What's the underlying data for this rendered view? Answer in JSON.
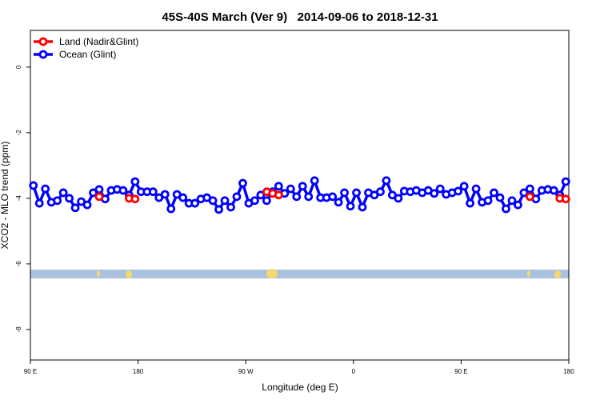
{
  "chart_data": {
    "type": "line",
    "title": "45S-40S March (Ver 9)   2014-09-06 to 2018-12-31",
    "x_label": "Longitude (deg E)",
    "y_label": "XCO2 - MLO trend (ppm)",
    "xlim": [
      90,
      540
    ],
    "ylim": [
      -8.93,
      1.12
    ],
    "xticks": [
      {
        "value": 90,
        "label": "90 E"
      },
      180,
      {
        "value": 270,
        "label": "90 W"
      },
      {
        "value": 360,
        "label": "0"
      },
      {
        "value": 450,
        "label": "90 E"
      },
      {
        "value": 540,
        "label": "180"
      }
    ],
    "yticks": [
      0,
      -2,
      -4,
      -6,
      -8
    ],
    "legend": "top-left",
    "x": [
      92.5,
      97.5,
      102.5,
      107.5,
      112.5,
      117.5,
      122.5,
      127.5,
      132.5,
      137.5,
      142.5,
      147.5,
      152.5,
      157.5,
      162.5,
      167.5,
      172.5,
      177.5,
      182.5,
      187.5,
      192.5,
      197.5,
      202.5,
      207.5,
      212.5,
      217.5,
      222.5,
      227.5,
      232.5,
      237.5,
      242.5,
      247.5,
      252.5,
      257.5,
      262.5,
      267.5,
      272.5,
      277.5,
      282.5,
      287.5,
      292.5,
      297.5,
      302.5,
      307.5,
      312.5,
      317.5,
      322.5,
      327.5,
      332.5,
      337.5,
      342.5,
      347.5,
      352.5,
      357.5,
      362.5,
      367.5,
      372.5,
      377.5,
      382.5,
      387.5,
      392.5,
      397.5,
      402.5,
      407.5,
      412.5,
      417.5,
      422.5,
      427.5,
      432.5,
      437.5,
      442.5,
      447.5,
      452.5,
      457.5,
      462.5,
      467.5,
      472.5,
      477.5,
      482.5,
      487.5,
      492.5,
      497.5,
      502.5,
      507.5,
      512.5,
      517.5,
      522.5,
      527.5,
      532.5,
      537.5
    ],
    "series": [
      {
        "name": "Land (Nadir&Glint)",
        "color": "#ff0000",
        "values": [
          null,
          null,
          null,
          null,
          null,
          null,
          null,
          null,
          null,
          null,
          null,
          -3.95,
          null,
          null,
          null,
          null,
          -4.0,
          -4.02,
          null,
          null,
          null,
          null,
          null,
          null,
          null,
          null,
          null,
          null,
          null,
          null,
          null,
          null,
          null,
          null,
          null,
          null,
          null,
          null,
          null,
          -3.8,
          -3.85,
          -3.9,
          null,
          null,
          null,
          null,
          null,
          null,
          null,
          null,
          null,
          null,
          null,
          null,
          null,
          null,
          null,
          null,
          null,
          null,
          null,
          null,
          null,
          null,
          null,
          null,
          null,
          null,
          null,
          null,
          null,
          null,
          null,
          null,
          null,
          null,
          null,
          null,
          null,
          null,
          null,
          null,
          null,
          -3.95,
          null,
          null,
          null,
          null,
          -4.0,
          -4.02
        ]
      },
      {
        "name": "Ocean (Glint)",
        "color": "#0000ff",
        "values": [
          -3.61,
          -4.15,
          -3.71,
          -4.12,
          -4.07,
          -3.83,
          -4.0,
          -4.29,
          -4.1,
          -4.2,
          -3.83,
          -3.73,
          -4.02,
          -3.76,
          -3.73,
          -3.76,
          -3.9,
          -3.49,
          -3.8,
          -3.8,
          -3.8,
          -3.98,
          -3.88,
          -4.32,
          -3.88,
          -3.98,
          -4.15,
          -4.15,
          -4.02,
          -3.98,
          -4.07,
          -4.34,
          -4.07,
          -4.27,
          -3.95,
          -3.54,
          -4.15,
          -4.07,
          -3.9,
          -4.07,
          -3.8,
          -3.63,
          -3.85,
          -3.71,
          -3.95,
          -3.63,
          -3.95,
          -3.46,
          -3.98,
          -3.98,
          -3.95,
          -4.12,
          -3.83,
          -4.24,
          -3.83,
          -4.27,
          -3.83,
          -3.9,
          -3.8,
          -3.46,
          -3.9,
          -4.0,
          -3.78,
          -3.8,
          -3.76,
          -3.83,
          -3.76,
          -3.85,
          -3.71,
          -3.88,
          -3.83,
          -3.78,
          -3.63,
          -4.15,
          -3.71,
          -4.12,
          -4.07,
          -3.83,
          -3.98,
          -4.32,
          -4.07,
          -4.2,
          -3.83,
          -3.71,
          -4.02,
          -3.76,
          -3.73,
          -3.76,
          -3.9,
          -3.49
        ]
      }
    ]
  }
}
